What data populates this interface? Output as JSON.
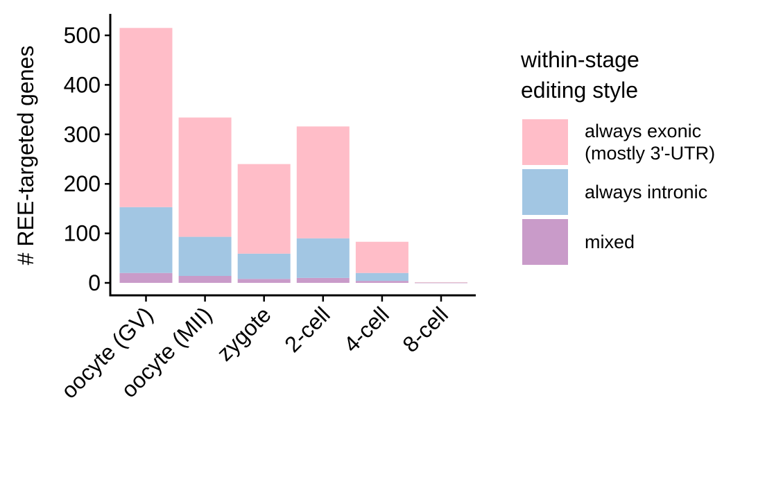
{
  "chart_data": {
    "type": "bar",
    "stacked": true,
    "ylabel": "# REE-targeted genes",
    "xlabel": "",
    "ylim": [
      0,
      530
    ],
    "yticks": [
      0,
      100,
      200,
      300,
      400,
      500
    ],
    "categories": [
      "oocyte (GV)",
      "oocyte (MII)",
      "zygote",
      "2-cell",
      "4-cell",
      "8-cell"
    ],
    "series": [
      {
        "name": "mixed",
        "color": "#C99BC9",
        "values": [
          20,
          14,
          8,
          10,
          4,
          0.5
        ]
      },
      {
        "name": "always intronic",
        "color": "#A2C6E3",
        "values": [
          133,
          79,
          51,
          80,
          16,
          0.5
        ]
      },
      {
        "name": "always exonic\n(mostly 3'-UTR)",
        "color": "#FFBDC8",
        "values": [
          362,
          241,
          181,
          226,
          63,
          0.5
        ]
      }
    ],
    "legend": {
      "title": "within-stage\nediting style",
      "position": "right",
      "order": [
        2,
        1,
        0
      ]
    },
    "grid": false
  }
}
